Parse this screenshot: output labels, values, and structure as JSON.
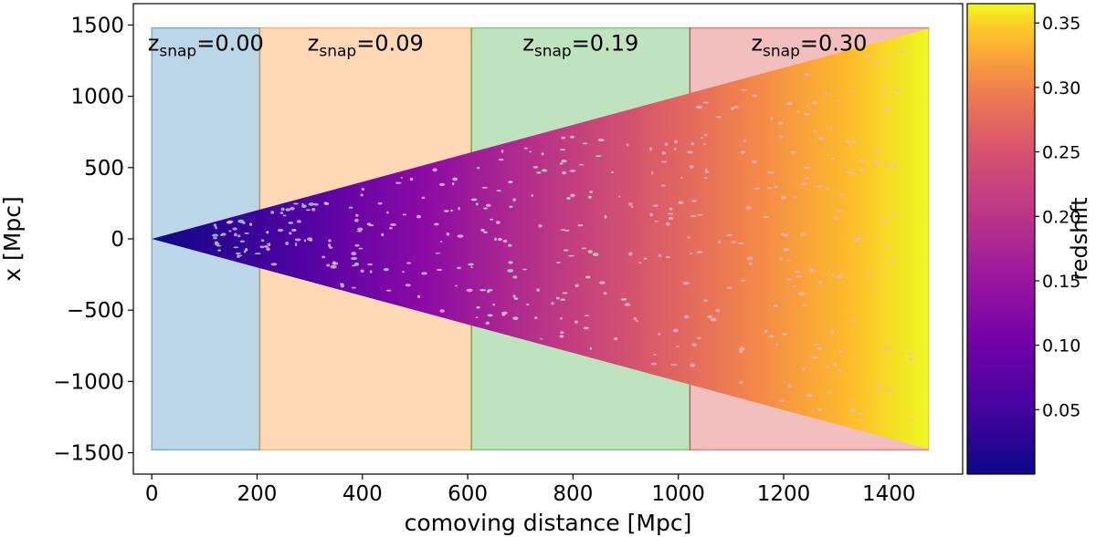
{
  "chart_data": {
    "type": "scatter",
    "xlabel": "comoving distance [Mpc]",
    "ylabel": "x [Mpc]",
    "xlim": [
      -35,
      1540
    ],
    "ylim": [
      -1650,
      1650
    ],
    "x_ticks": [
      0,
      200,
      400,
      600,
      800,
      1000,
      1200,
      1400
    ],
    "y_ticks": [
      -1500,
      -1000,
      -500,
      0,
      500,
      1000,
      1500
    ],
    "x_tick_labels": [
      "0",
      "200",
      "400",
      "600",
      "800",
      "1000",
      "1200",
      "1400"
    ],
    "y_tick_labels": [
      "−1500",
      "−1000",
      "−500",
      "0",
      "500",
      "1000",
      "1500"
    ],
    "lightcone": {
      "apex": [
        0,
        0
      ],
      "x_end": 1475,
      "half_width_at_end": 1475,
      "color_by": "redshift"
    },
    "snapshot_regions": [
      {
        "x_start": 0,
        "x_end": 205,
        "label_main": "z",
        "label_sub": "snap",
        "label_value": "=0.00",
        "color": "#1f77b4"
      },
      {
        "x_start": 205,
        "x_end": 607,
        "label_main": "z",
        "label_sub": "snap",
        "label_value": "=0.09",
        "color": "#ff7f0e"
      },
      {
        "x_start": 607,
        "x_end": 1022,
        "label_main": "z",
        "label_sub": "snap",
        "label_value": "=0.19",
        "color": "#2ca02c"
      },
      {
        "x_start": 1022,
        "x_end": 1475,
        "label_main": "z",
        "label_sub": "snap",
        "label_value": "=0.30",
        "color": "#d62728"
      }
    ],
    "region_y_range": [
      -1480,
      1480
    ],
    "colorbar": {
      "label": "redshift",
      "range": [
        0.0,
        0.365
      ],
      "ticks": [
        0.05,
        0.1,
        0.15,
        0.2,
        0.25,
        0.3,
        0.35
      ],
      "tick_labels": [
        "0.05",
        "0.10",
        "0.15",
        "0.20",
        "0.25",
        "0.30",
        "0.35"
      ],
      "colormap": "plasma"
    }
  }
}
